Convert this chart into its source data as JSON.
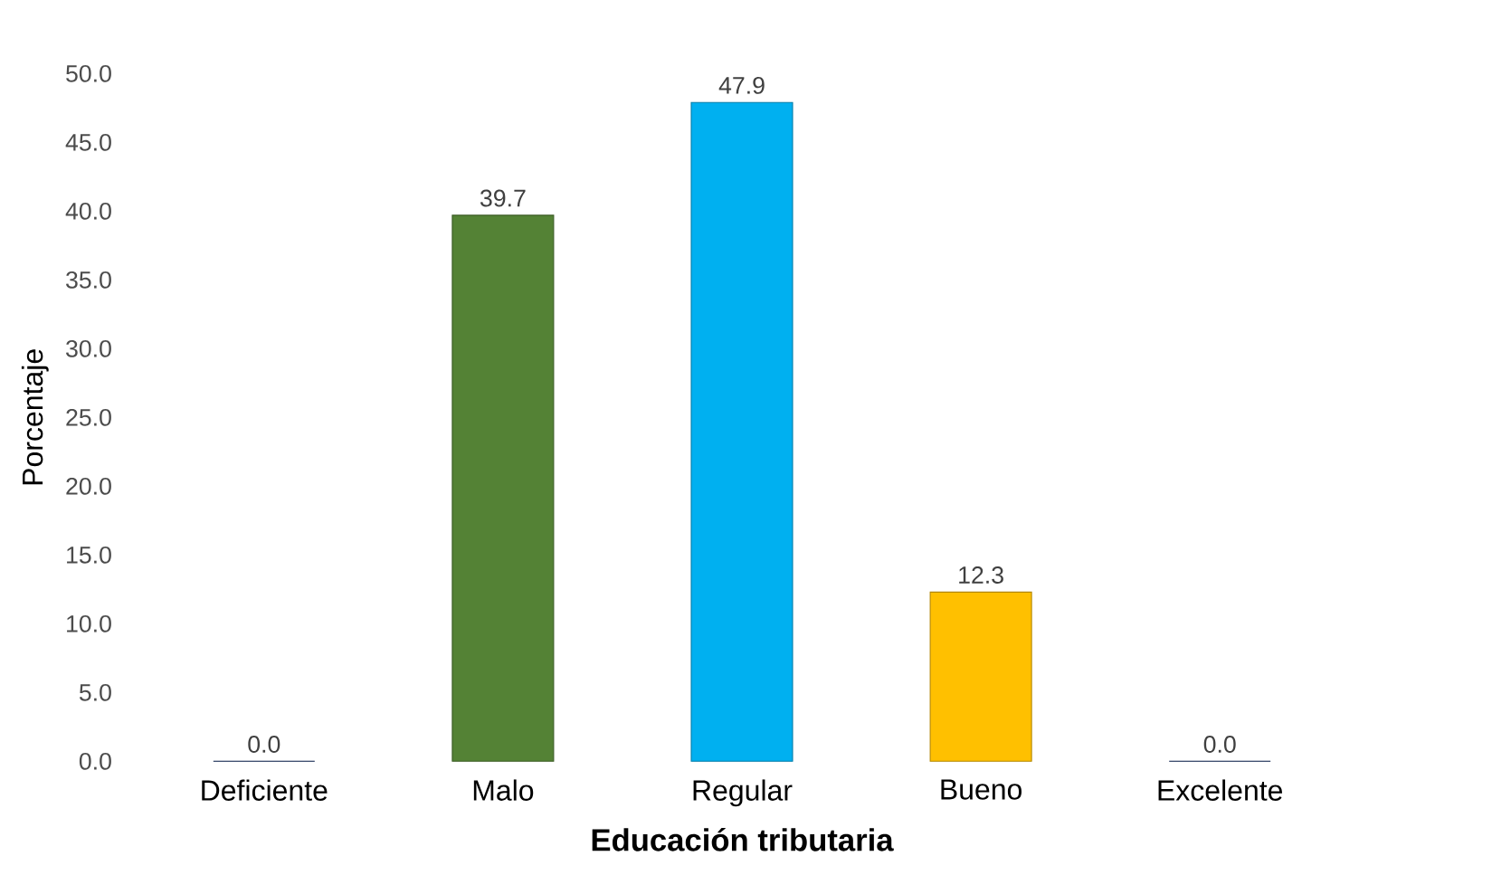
{
  "chart_data": {
    "type": "bar",
    "categories": [
      "Deficiente",
      "Malo",
      "Regular",
      "Bueno",
      "Excelente"
    ],
    "values": [
      0.0,
      39.7,
      47.9,
      12.3,
      0.0
    ],
    "colors": [
      "#002060",
      "#548235",
      "#00b0f0",
      "#ffc000",
      "#002060"
    ],
    "xlabel": "Educación tributaria",
    "ylabel": "Porcentaje",
    "ylim": [
      0,
      50
    ],
    "yticks": [
      {
        "value": 0,
        "label": "0.0"
      },
      {
        "value": 5,
        "label": "5.0"
      },
      {
        "value": 10,
        "label": "10.0"
      },
      {
        "value": 15,
        "label": "15.0"
      },
      {
        "value": 20,
        "label": "20.0"
      },
      {
        "value": 25,
        "label": "25.0"
      },
      {
        "value": 30,
        "label": "30.0"
      },
      {
        "value": 35,
        "label": "35.0"
      },
      {
        "value": 40,
        "label": "40.0"
      },
      {
        "value": 45,
        "label": "45.0"
      },
      {
        "value": 50,
        "label": "50.0"
      }
    ],
    "value_labels": [
      "0.0",
      "39.7",
      "47.9",
      "12.3",
      "0.0"
    ]
  }
}
